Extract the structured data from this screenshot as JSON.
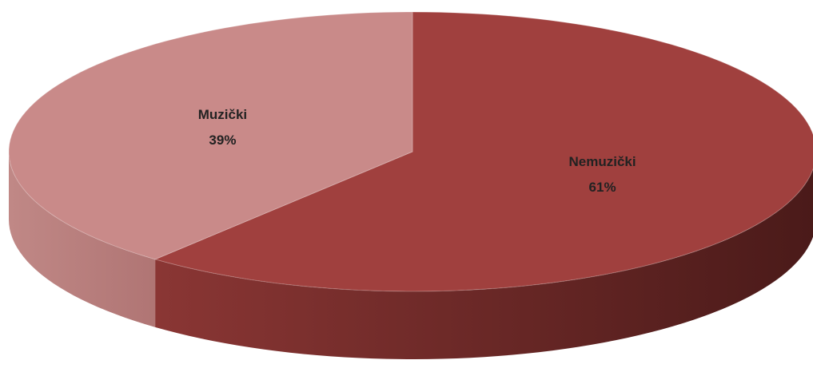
{
  "chart_data": {
    "type": "pie3d",
    "categories": [
      "Nemuzički",
      "Muzički"
    ],
    "values": [
      61,
      39
    ],
    "value_labels": [
      "61%",
      "39%"
    ],
    "colors": [
      "#a0403e",
      "#c98a89"
    ]
  }
}
